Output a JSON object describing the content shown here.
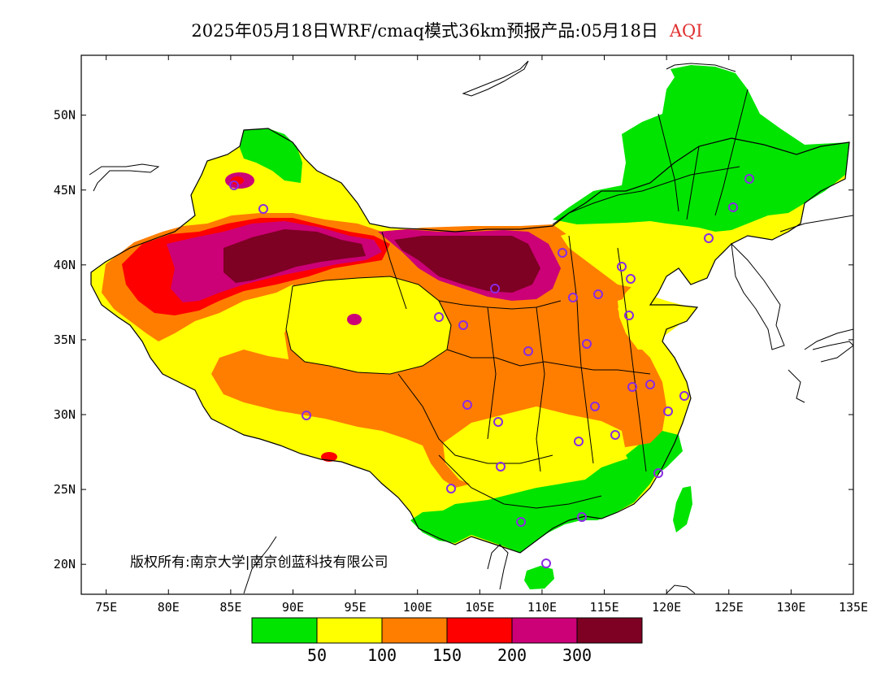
{
  "title": {
    "main": "2025年05月18日WRF/cmaq模式36km预报产品:05月18日",
    "variable": "AQI",
    "variable_color": "#e03030"
  },
  "copyright": "版权所有:南京大学|南京创蓝科技有限公司",
  "map": {
    "lon_range": [
      73,
      135
    ],
    "lat_range": [
      18,
      54
    ],
    "lon_ticks": [
      "75E",
      "80E",
      "85E",
      "90E",
      "95E",
      "100E",
      "105E",
      "110E",
      "115E",
      "120E",
      "125E",
      "130E",
      "135E"
    ],
    "lat_ticks": [
      "50N",
      "45N",
      "40N",
      "35N",
      "30N",
      "25N",
      "20N"
    ]
  },
  "legend": {
    "colors": [
      "#00e400",
      "#ffff00",
      "#ff7e00",
      "#ff0000",
      "#cc0077",
      "#7e0023"
    ],
    "labels": [
      "50",
      "100",
      "150",
      "200",
      "300"
    ]
  },
  "stations_marker_color": "#8a2be2"
}
